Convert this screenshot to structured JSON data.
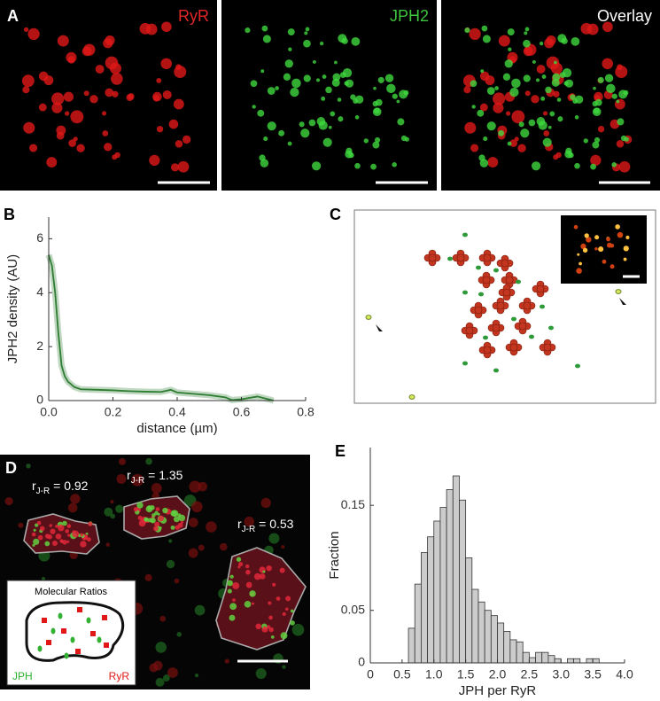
{
  "panels": {
    "a": {
      "label": "A",
      "images": [
        "RyR",
        "JPH2",
        "Overlay"
      ]
    },
    "c": {
      "label": "C"
    },
    "d": {
      "label": "D",
      "ratios": [
        {
          "symbol": "r",
          "subscript": "J-R",
          "text": " = 0.92"
        },
        {
          "symbol": "r",
          "subscript": "J-R",
          "text": " = 1.35"
        },
        {
          "symbol": "r",
          "subscript": "J-R",
          "text": " = 0.53"
        }
      ],
      "inset": {
        "title": "Molecular Ratios",
        "left": "JPH",
        "right": "RyR"
      }
    }
  },
  "chart_data": [
    {
      "type": "line",
      "label": "B",
      "x_label": "distance (µm)",
      "y_label": "JPH2 density (AU)",
      "x": [
        0,
        0.01,
        0.02,
        0.03,
        0.04,
        0.05,
        0.06,
        0.08,
        0.1,
        0.15,
        0.2,
        0.25,
        0.3,
        0.35,
        0.38,
        0.4,
        0.45,
        0.5,
        0.55,
        0.57,
        0.6,
        0.65,
        0.7
      ],
      "values": [
        5.4,
        5.0,
        4.0,
        2.5,
        1.3,
        0.9,
        0.7,
        0.5,
        0.42,
        0.4,
        0.38,
        0.35,
        0.33,
        0.32,
        0.4,
        0.3,
        0.25,
        0.2,
        0.12,
        0.02,
        0.05,
        0.15,
        0
      ],
      "color": "#2e7d32",
      "xlim": [
        0,
        0.8
      ],
      "ylim": [
        0,
        6.8
      ],
      "xticks": [
        {
          "value": 0,
          "label": "0.0"
        },
        0.2,
        0.4,
        0.6,
        0.8
      ],
      "yticks": [
        0,
        2,
        4,
        6
      ]
    },
    {
      "type": "histogram",
      "label": "E",
      "x_label": "JPH per RyR",
      "y_label": "Fraction",
      "bins": [
        0.6,
        0.7,
        0.8,
        0.9,
        1.0,
        1.1,
        1.2,
        1.3,
        1.4,
        1.5,
        1.6,
        1.7,
        1.8,
        1.9,
        2.0,
        2.1,
        2.2,
        2.3,
        2.4,
        2.5,
        2.6,
        2.7,
        2.8,
        2.9,
        3.0,
        3.1,
        3.2,
        3.3,
        3.4,
        3.5,
        3.6
      ],
      "values": [
        0.033,
        0.075,
        0.105,
        0.12,
        0.135,
        0.148,
        0.165,
        0.178,
        0.155,
        0.1,
        0.07,
        0.058,
        0.05,
        0.045,
        0.038,
        0.03,
        0.022,
        0.02,
        0.01,
        0.005,
        0.01,
        0.01,
        0.007,
        0.004,
        0,
        0.004,
        0.004,
        0,
        0.004,
        0.004
      ],
      "color": "#cccccc",
      "xlim": [
        0,
        4.0
      ],
      "ylim": [
        0,
        0.205
      ],
      "xticks": [
        0,
        0.5,
        {
          "value": 1.0,
          "label": "1.0"
        },
        1.5,
        {
          "value": 2.0,
          "label": "2.0"
        },
        2.5,
        {
          "value": 3.0,
          "label": "3.0"
        },
        3.5,
        {
          "value": 4.0,
          "label": "4.0"
        }
      ],
      "yticks": [
        0,
        0.05,
        0.15
      ]
    }
  ]
}
